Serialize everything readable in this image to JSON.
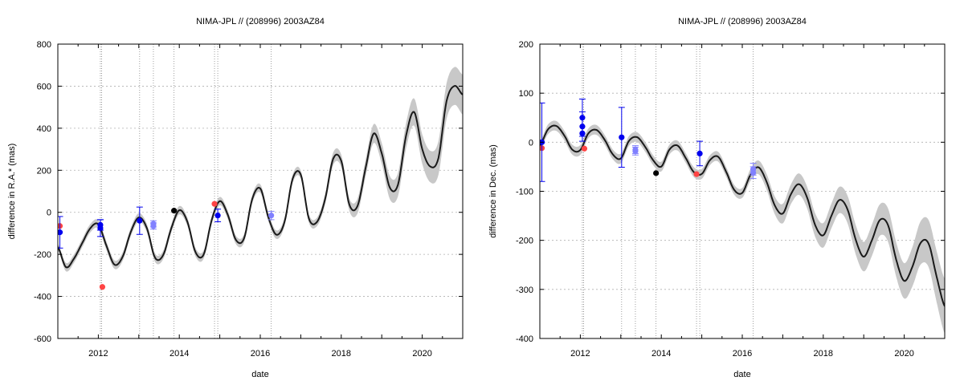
{
  "colors": {
    "model_line": "#1a1a1a",
    "uncertainty_band": "#c8c8c8",
    "obs_dark_blue": "#0000ee",
    "obs_light_blue": "#8080ff",
    "obs_red": "#ff4444",
    "obs_black": "#000000",
    "grid": "#b0b0b0",
    "vertical_markers": "#888888"
  },
  "chart_data": [
    {
      "type": "line",
      "title": "NIMA-JPL // (208996) 2003AZ84",
      "xlabel": "date",
      "ylabel": "difference in R.A.* (mas)",
      "xlim": [
        2011.0,
        2021.0
      ],
      "ylim": [
        -600,
        800
      ],
      "xticks": [
        2012,
        2014,
        2016,
        2018,
        2020
      ],
      "xtick_labels": [
        "2012",
        "2014",
        "2016",
        "2018",
        "2020"
      ],
      "yticks": [
        -600,
        -400,
        -200,
        0,
        200,
        400,
        600,
        800
      ],
      "ytick_labels": [
        "-600",
        "-400",
        "-200",
        "0",
        "200",
        "400",
        "600",
        "800"
      ],
      "grid": true,
      "vertical_markers": [
        2012.05,
        2012.08,
        2013.02,
        2013.36,
        2013.87,
        2014.87,
        2014.95,
        2016.27
      ],
      "model": {
        "x": [
          2011.0,
          2011.2,
          2011.4,
          2011.6,
          2011.8,
          2012.0,
          2012.2,
          2012.4,
          2012.6,
          2012.8,
          2013.0,
          2013.2,
          2013.4,
          2013.6,
          2013.8,
          2014.0,
          2014.2,
          2014.4,
          2014.6,
          2014.8,
          2015.0,
          2015.2,
          2015.4,
          2015.6,
          2015.8,
          2016.0,
          2016.2,
          2016.4,
          2016.6,
          2016.8,
          2017.0,
          2017.2,
          2017.4,
          2017.6,
          2017.8,
          2018.0,
          2018.2,
          2018.4,
          2018.6,
          2018.8,
          2019.0,
          2019.2,
          2019.4,
          2019.6,
          2019.8,
          2020.0,
          2020.2,
          2020.4,
          2020.6,
          2020.8,
          2021.0
        ],
        "y": [
          -164.7,
          -260.8,
          -219.5,
          -147.2,
          -76.2,
          -57.2,
          -159.1,
          -249.0,
          -211.6,
          -94.0,
          -24.3,
          -75.8,
          -215.6,
          -203.9,
          -77.4,
          10.0,
          -45.3,
          -189.7,
          -201.4,
          -36.8,
          53.2,
          -13.0,
          -131.8,
          -123.6,
          62.2,
          113.4,
          -23.7,
          -106.7,
          -45.0,
          159.9,
          179.5,
          -29.3,
          -45.8,
          61.4,
          254.4,
          244.4,
          36.6,
          29.3,
          209.1,
          374.6,
          280.4,
          117.4,
          131.1,
          363.3,
          477.2,
          300.5,
          217.6,
          258.4,
          527.9,
          601.2,
          559.5
        ],
        "band_halfwidth": [
          15,
          20,
          20,
          20,
          20,
          20,
          20,
          20,
          20,
          20,
          20,
          20,
          20,
          20,
          20,
          20,
          20,
          20,
          20,
          20,
          20,
          20,
          20,
          20,
          20,
          20,
          20,
          20,
          20,
          20,
          20,
          20,
          20,
          25,
          30,
          30,
          30,
          35,
          40,
          45,
          50,
          55,
          55,
          60,
          65,
          70,
          75,
          80,
          85,
          90,
          95
        ]
      },
      "observations": [
        {
          "x": 2011.05,
          "y": -65,
          "err": 0,
          "color": "obs_red"
        },
        {
          "x": 2011.05,
          "y": -95,
          "err": 75,
          "color": "obs_dark_blue"
        },
        {
          "x": 2012.05,
          "y": -60,
          "err": 25,
          "color": "obs_dark_blue"
        },
        {
          "x": 2012.05,
          "y": -75,
          "err": 40,
          "color": "obs_dark_blue"
        },
        {
          "x": 2012.1,
          "y": -355,
          "err": 0,
          "color": "obs_red"
        },
        {
          "x": 2013.02,
          "y": -40,
          "err": 65,
          "color": "obs_dark_blue"
        },
        {
          "x": 2013.36,
          "y": -55,
          "err": 15,
          "color": "obs_light_blue"
        },
        {
          "x": 2013.36,
          "y": -65,
          "err": 15,
          "color": "obs_light_blue"
        },
        {
          "x": 2013.87,
          "y": 8,
          "err": 0,
          "color": "obs_black"
        },
        {
          "x": 2014.87,
          "y": 40,
          "err": 0,
          "color": "obs_red"
        },
        {
          "x": 2014.95,
          "y": -15,
          "err": 30,
          "color": "obs_dark_blue"
        },
        {
          "x": 2016.27,
          "y": -15,
          "err": 20,
          "color": "obs_light_blue"
        }
      ]
    },
    {
      "type": "line",
      "title": "NIMA-JPL // (208996) 2003AZ84",
      "xlabel": "date",
      "ylabel": "difference in Dec. (mas)",
      "xlim": [
        2011.0,
        2021.0
      ],
      "ylim": [
        -400,
        200
      ],
      "xticks": [
        2012,
        2014,
        2016,
        2018,
        2020
      ],
      "xtick_labels": [
        "2012",
        "2014",
        "2016",
        "2018",
        "2020"
      ],
      "yticks": [
        -400,
        -300,
        -200,
        -100,
        0,
        100,
        200
      ],
      "ytick_labels": [
        "-400",
        "-300",
        "-200",
        "-100",
        "0",
        "100",
        "200"
      ],
      "grid": true,
      "vertical_markers": [
        2012.05,
        2012.08,
        2013.02,
        2013.36,
        2013.87,
        2014.87,
        2014.95,
        2016.27
      ],
      "model": {
        "x": [
          2011.0,
          2011.2,
          2011.4,
          2011.6,
          2011.8,
          2012.0,
          2012.2,
          2012.4,
          2012.6,
          2012.8,
          2013.0,
          2013.2,
          2013.4,
          2013.6,
          2013.8,
          2014.0,
          2014.2,
          2014.4,
          2014.6,
          2014.8,
          2015.0,
          2015.2,
          2015.4,
          2015.6,
          2015.8,
          2016.0,
          2016.2,
          2016.4,
          2016.6,
          2016.8,
          2017.0,
          2017.2,
          2017.4,
          2017.6,
          2017.8,
          2018.0,
          2018.2,
          2018.4,
          2018.6,
          2018.8,
          2019.0,
          2019.2,
          2019.4,
          2019.6,
          2019.8,
          2020.0,
          2020.2,
          2020.4,
          2020.6,
          2020.8,
          2021.0
        ],
        "y": [
          -7.0,
          26.0,
          33.4,
          14.3,
          -15.0,
          -15.8,
          18.2,
          25.0,
          5.1,
          -24.5,
          -33.1,
          2.5,
          10.4,
          -9.2,
          -36.8,
          -49.6,
          -15.1,
          -6.8,
          -31.7,
          -60.6,
          -64.6,
          -36.7,
          -29.3,
          -59.9,
          -97.0,
          -103.3,
          -66.9,
          -51.1,
          -80.4,
          -128.3,
          -145.4,
          -106.2,
          -85.4,
          -112.4,
          -168.8,
          -189.7,
          -150.4,
          -117.6,
          -137.0,
          -198.3,
          -233.3,
          -200.1,
          -158.4,
          -168.9,
          -238.9,
          -282.6,
          -254.2,
          -205.8,
          -206.2,
          -273.9,
          -334.3
        ],
        "band_halfwidth": [
          8,
          10,
          10,
          10,
          10,
          10,
          10,
          10,
          10,
          10,
          10,
          10,
          10,
          10,
          10,
          10,
          10,
          10,
          10,
          10,
          10,
          10,
          10,
          10,
          10,
          10,
          12,
          14,
          16,
          18,
          20,
          20,
          22,
          22,
          24,
          25,
          25,
          27,
          28,
          30,
          30,
          32,
          32,
          34,
          35,
          36,
          40,
          44,
          48,
          52,
          56
        ]
      },
      "observations": [
        {
          "x": 2011.05,
          "y": -12,
          "err": 0,
          "color": "obs_red"
        },
        {
          "x": 2011.05,
          "y": 0,
          "err": 80,
          "color": "obs_dark_blue"
        },
        {
          "x": 2012.05,
          "y": 50,
          "err": 38,
          "color": "obs_dark_blue"
        },
        {
          "x": 2012.05,
          "y": 32,
          "err": 30,
          "color": "obs_dark_blue"
        },
        {
          "x": 2012.05,
          "y": 18,
          "err": 0,
          "color": "obs_dark_blue"
        },
        {
          "x": 2012.1,
          "y": -13,
          "err": 0,
          "color": "obs_red"
        },
        {
          "x": 2013.02,
          "y": 10,
          "err": 61,
          "color": "obs_dark_blue"
        },
        {
          "x": 2013.36,
          "y": -15,
          "err": 8,
          "color": "obs_light_blue"
        },
        {
          "x": 2013.36,
          "y": -18,
          "err": 8,
          "color": "obs_light_blue"
        },
        {
          "x": 2013.87,
          "y": -63,
          "err": 0,
          "color": "obs_black"
        },
        {
          "x": 2014.87,
          "y": -65,
          "err": 0,
          "color": "obs_red"
        },
        {
          "x": 2014.95,
          "y": -23,
          "err": 25,
          "color": "obs_dark_blue"
        },
        {
          "x": 2016.27,
          "y": -55,
          "err": 12,
          "color": "obs_light_blue"
        },
        {
          "x": 2016.27,
          "y": -62,
          "err": 12,
          "color": "obs_light_blue"
        }
      ]
    }
  ]
}
